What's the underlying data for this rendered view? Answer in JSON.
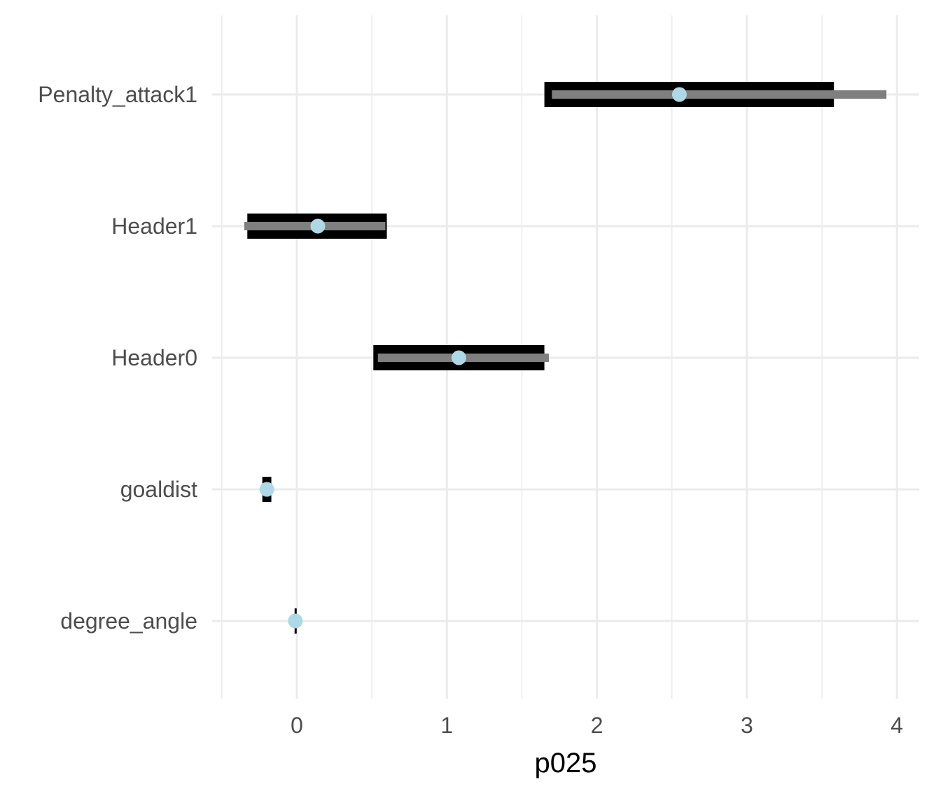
{
  "chart_data": {
    "type": "interval",
    "title": "",
    "xlabel": "p025",
    "ylabel": "",
    "xlim": [
      -0.5,
      4.05
    ],
    "x_ticks": [
      0,
      1,
      2,
      3,
      4
    ],
    "x_tick_labels": [
      "0",
      "1",
      "2",
      "3",
      "4"
    ],
    "grid": true,
    "legend": "none",
    "categories": [
      "Penalty_attack1",
      "Header1",
      "Header0",
      "goaldist",
      "degree_angle"
    ],
    "estimate": [
      2.55,
      0.14,
      1.08,
      -0.2,
      -0.01
    ],
    "inner_interval": [
      [
        1.65,
        3.58
      ],
      [
        -0.33,
        0.6
      ],
      [
        0.51,
        1.65
      ],
      [
        -0.23,
        -0.17
      ],
      [
        -0.015,
        -0.005
      ]
    ],
    "outer_interval": [
      [
        1.7,
        3.93
      ],
      [
        -0.35,
        0.59
      ],
      [
        0.54,
        1.68
      ],
      [
        -0.22,
        -0.18
      ],
      [
        -0.012,
        -0.008
      ]
    ],
    "colors": {
      "inner_interval": "#000000",
      "outer_interval": "#7f7f7f",
      "point": "#add8e6",
      "grid": "#ebebeb"
    }
  }
}
